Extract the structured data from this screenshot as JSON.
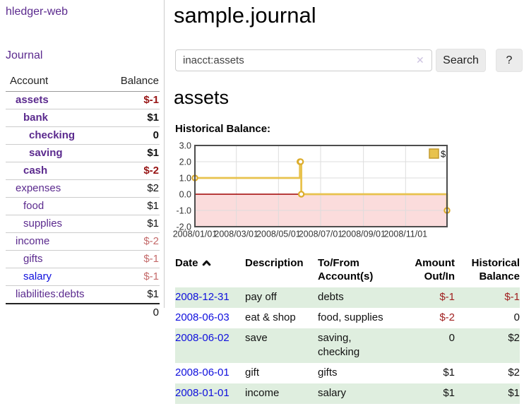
{
  "sidebar": {
    "app_title": "hledger-web",
    "journal_link": "Journal",
    "accounts": {
      "header_account": "Account",
      "header_balance": "Balance",
      "rows": [
        {
          "name": "assets",
          "balance": "$-1"
        },
        {
          "name": "bank",
          "balance": "$1"
        },
        {
          "name": "checking",
          "balance": "0"
        },
        {
          "name": "saving",
          "balance": "$1"
        },
        {
          "name": "cash",
          "balance": "$-2"
        },
        {
          "name": "expenses",
          "balance": "$2"
        },
        {
          "name": "food",
          "balance": "$1"
        },
        {
          "name": "supplies",
          "balance": "$1"
        },
        {
          "name": "income",
          "balance": "$-2"
        },
        {
          "name": "gifts",
          "balance": "$-1"
        },
        {
          "name": "salary",
          "balance": "$-1"
        },
        {
          "name": "liabilities:debts",
          "balance": "$1"
        }
      ],
      "total": "0"
    }
  },
  "main": {
    "title": "sample.journal",
    "search": {
      "value": "inacct:assets",
      "clear_icon": "✕",
      "search_button": "Search",
      "help_button": "?"
    },
    "account_heading": "assets",
    "section_label": "Historical Balance:",
    "register": {
      "headers": {
        "date": "Date",
        "description": "Description",
        "accounts": "To/From Account(s)",
        "amount": "Amount Out/In",
        "balance": "Historical Balance"
      },
      "rows": [
        {
          "date": "2008-12-31",
          "description": "pay off",
          "accounts": "debts",
          "amount": "$-1",
          "balance": "$-1"
        },
        {
          "date": "2008-06-03",
          "description": "eat & shop",
          "accounts": "food, supplies",
          "amount": "$-2",
          "balance": "0"
        },
        {
          "date": "2008-06-02",
          "description": "save",
          "accounts": "saving,\nchecking",
          "amount": "0",
          "balance": "$2"
        },
        {
          "date": "2008-06-01",
          "description": "gift",
          "accounts": "gifts",
          "amount": "$1",
          "balance": "$2"
        },
        {
          "date": "2008-01-01",
          "description": "income",
          "accounts": "salary",
          "amount": "$1",
          "balance": "$1"
        }
      ]
    }
  },
  "chart_data": {
    "type": "line",
    "title": "Historical Balance:",
    "step": true,
    "x_range": [
      "2008-01-01",
      "2008-12-31"
    ],
    "ylim": [
      -2,
      3
    ],
    "y_ticks": [
      "3.0",
      "2.0",
      "1.0",
      "0.0",
      "-1.0",
      "-2.0"
    ],
    "x_ticks": [
      "2008/01/01",
      "2008/03/01",
      "2008/05/01",
      "2008/07/01",
      "2008/09/01",
      "2008/11/01"
    ],
    "series": [
      {
        "name": "$",
        "points": [
          [
            "2008-01-01",
            1
          ],
          [
            "2008-06-01",
            2
          ],
          [
            "2008-06-02",
            2
          ],
          [
            "2008-06-03",
            0
          ],
          [
            "2008-12-31",
            -1
          ]
        ]
      }
    ],
    "legend": {
      "label": "$",
      "position": "top-right"
    },
    "grid": true,
    "colors": {
      "line": "#e8c24d",
      "marker_stroke": "#dcac2c",
      "negative_fill": "#fbdcdc",
      "zero_line": "#a00000",
      "grid": "#dddddd"
    }
  }
}
